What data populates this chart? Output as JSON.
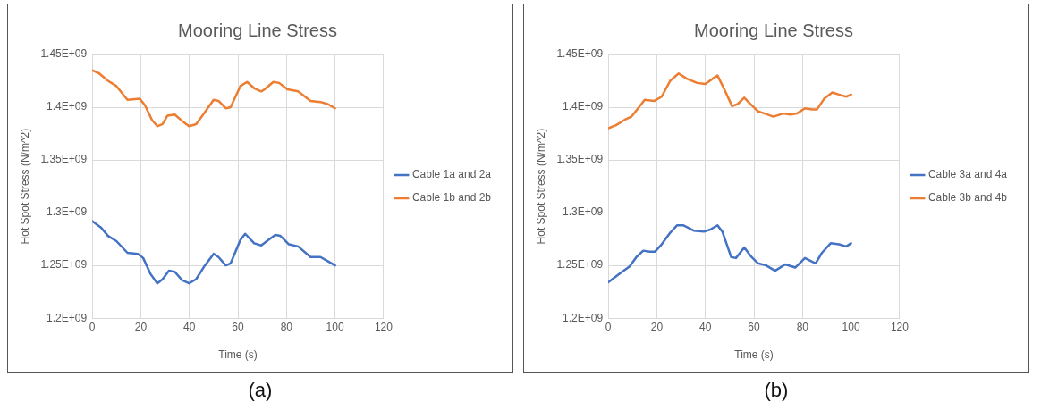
{
  "chart_data": [
    {
      "type": "line",
      "title": "Mooring Line Stress",
      "xlabel": "Time (s)",
      "ylabel": "Hot Spot Stress (N/m^2)",
      "annotations": [
        "(a)"
      ],
      "xlim": [
        0,
        120
      ],
      "xticks": [
        0,
        20,
        40,
        60,
        80,
        100,
        120
      ],
      "ylim": [
        1200000000,
        1450000000
      ],
      "yticks": [
        {
          "value": 1200000000,
          "label": "1.2E+09"
        },
        {
          "value": 1250000000,
          "label": "1.25E+09"
        },
        {
          "value": 1300000000,
          "label": "1.3E+09"
        },
        {
          "value": 1350000000,
          "label": "1.35E+09"
        },
        {
          "value": 1400000000,
          "label": "1.4E+09"
        },
        {
          "value": 1450000000,
          "label": "1.45E+09"
        }
      ],
      "grid": true,
      "legend": "right",
      "marker": "none",
      "line_style": "solid",
      "series": [
        {
          "name": "Cable 1a and 2a",
          "color": "#4472c4",
          "x": [
            0,
            3.6,
            6.5,
            10,
            14.5,
            18.8,
            21,
            24,
            26.8,
            29,
            31.6,
            34,
            37,
            39.9,
            42.8,
            46.4,
            50,
            52,
            55,
            57,
            61,
            63,
            66.7,
            69.6,
            72.5,
            75.4,
            77.5,
            81,
            84.8,
            89.9,
            94,
            97,
            100
          ],
          "values": [
            1292000000,
            1286000000,
            1278000000,
            1273000000,
            1262000000,
            1261000000,
            1257000000,
            1242000000,
            1233000000,
            1237000000,
            1245000000,
            1244000000,
            1236000000,
            1233000000,
            1237000000,
            1250000000,
            1261000000,
            1258000000,
            1250000000,
            1252000000,
            1274000000,
            1280000000,
            1271000000,
            1269000000,
            1274000000,
            1279000000,
            1278000000,
            1270000000,
            1268000000,
            1258000000,
            1258000000,
            1254000000,
            1250000000
          ]
        },
        {
          "name": "Cable 1b and 2b",
          "color": "#ed7d31",
          "x": [
            0,
            2.9,
            6.5,
            10,
            14.5,
            19.6,
            21.7,
            24.6,
            26.8,
            29,
            31,
            34,
            37,
            39.9,
            42.8,
            45.7,
            50,
            52,
            55,
            57,
            61,
            63.8,
            66.7,
            69.6,
            71,
            74.6,
            77,
            80.4,
            84.8,
            89.9,
            94,
            97,
            100
          ],
          "values": [
            1435000000,
            1432000000,
            1425000000,
            1420000000,
            1407000000,
            1408000000,
            1402000000,
            1388000000,
            1382000000,
            1384000000,
            1392000000,
            1393000000,
            1387000000,
            1382000000,
            1384000000,
            1393000000,
            1407000000,
            1406000000,
            1399000000,
            1400000000,
            1420000000,
            1424000000,
            1418000000,
            1415000000,
            1417000000,
            1424000000,
            1423000000,
            1417000000,
            1415000000,
            1406000000,
            1405000000,
            1403000000,
            1399000000
          ]
        }
      ]
    },
    {
      "type": "line",
      "title": "Mooring Line Stress",
      "xlabel": "Time (s)",
      "ylabel": "Hot Spot Stress (N/m^2)",
      "annotations": [
        "(b)"
      ],
      "xlim": [
        0,
        120
      ],
      "xticks": [
        0,
        20,
        40,
        60,
        80,
        100,
        120
      ],
      "ylim": [
        1200000000,
        1450000000
      ],
      "yticks": [
        {
          "value": 1200000000,
          "label": "1.2E+09"
        },
        {
          "value": 1250000000,
          "label": "1.25E+09"
        },
        {
          "value": 1300000000,
          "label": "1.3E+09"
        },
        {
          "value": 1350000000,
          "label": "1.35E+09"
        },
        {
          "value": 1400000000,
          "label": "1.4E+09"
        },
        {
          "value": 1450000000,
          "label": "1.45E+09"
        }
      ],
      "grid": true,
      "legend": "right",
      "marker": "none",
      "line_style": "solid",
      "series": [
        {
          "name": "Cable 3a and 4a",
          "color": "#4472c4",
          "x": [
            0,
            4.6,
            8.8,
            11.6,
            14.4,
            17,
            19.2,
            22,
            25.5,
            28.3,
            31,
            35.2,
            39.4,
            42,
            45,
            47,
            50.6,
            52.6,
            56,
            59,
            61.7,
            65,
            68.7,
            72.9,
            77,
            81,
            85.4,
            88,
            91.6,
            95,
            98,
            100
          ],
          "values": [
            1234000000,
            1242000000,
            1249000000,
            1258000000,
            1264000000,
            1263000000,
            1263000000,
            1270000000,
            1281000000,
            1288000000,
            1288000000,
            1283000000,
            1282000000,
            1284000000,
            1288000000,
            1282000000,
            1258000000,
            1257000000,
            1267000000,
            1258000000,
            1252000000,
            1250000000,
            1245000000,
            1251000000,
            1248000000,
            1257000000,
            1252000000,
            1262000000,
            1271000000,
            1270000000,
            1268000000,
            1271000000
          ]
        },
        {
          "name": "Cable 3b and 4b",
          "color": "#ed7d31",
          "x": [
            0,
            3.2,
            6.7,
            9.5,
            12.3,
            15,
            19,
            22,
            25.5,
            29,
            32.3,
            36.6,
            40,
            43,
            45,
            47.8,
            51,
            53.3,
            56,
            59,
            61.7,
            64.5,
            68,
            72,
            75,
            77.7,
            81,
            84,
            86,
            88.9,
            92.3,
            95,
            98,
            100
          ],
          "values": [
            1380000000,
            1383000000,
            1388000000,
            1391000000,
            1399000000,
            1407000000,
            1406000000,
            1410000000,
            1425000000,
            1432000000,
            1427000000,
            1423000000,
            1422000000,
            1427000000,
            1430000000,
            1417000000,
            1401000000,
            1403000000,
            1409000000,
            1402000000,
            1396000000,
            1394000000,
            1391000000,
            1394000000,
            1393000000,
            1394000000,
            1399000000,
            1398000000,
            1398000000,
            1408000000,
            1414000000,
            1412000000,
            1410000000,
            1412000000
          ]
        }
      ]
    }
  ]
}
